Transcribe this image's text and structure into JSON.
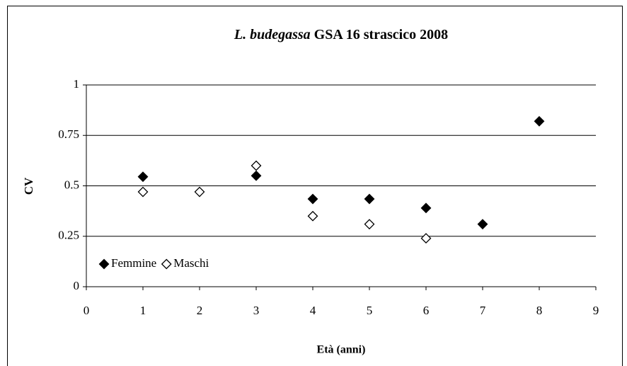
{
  "chart_data": {
    "type": "scatter",
    "title": [
      "L. budegassa",
      "GSA 16 strascico 2008"
    ],
    "x_label": "Età (anni)",
    "y_label": "CV",
    "xlim": [
      0,
      9
    ],
    "xticks": [
      0,
      1,
      2,
      3,
      4,
      5,
      6,
      7,
      8,
      9
    ],
    "ylim": [
      0,
      1
    ],
    "yticks": [
      0,
      0.25,
      0.5,
      0.75,
      1
    ],
    "grid": true,
    "legend": "lower left",
    "series": [
      {
        "name": "Femmine",
        "color": "#000000",
        "fill": "#000000",
        "x": [
          1,
          3,
          4,
          5,
          6,
          7,
          8
        ],
        "values": [
          0.545,
          0.55,
          0.435,
          0.435,
          0.39,
          0.31,
          0.82
        ]
      },
      {
        "name": "Maschi",
        "color": "#000000",
        "fill": "#ffffff",
        "x": [
          1,
          2,
          3,
          4,
          5,
          6
        ],
        "values": [
          0.47,
          0.47,
          0.6,
          0.35,
          0.31,
          0.24
        ]
      }
    ]
  }
}
